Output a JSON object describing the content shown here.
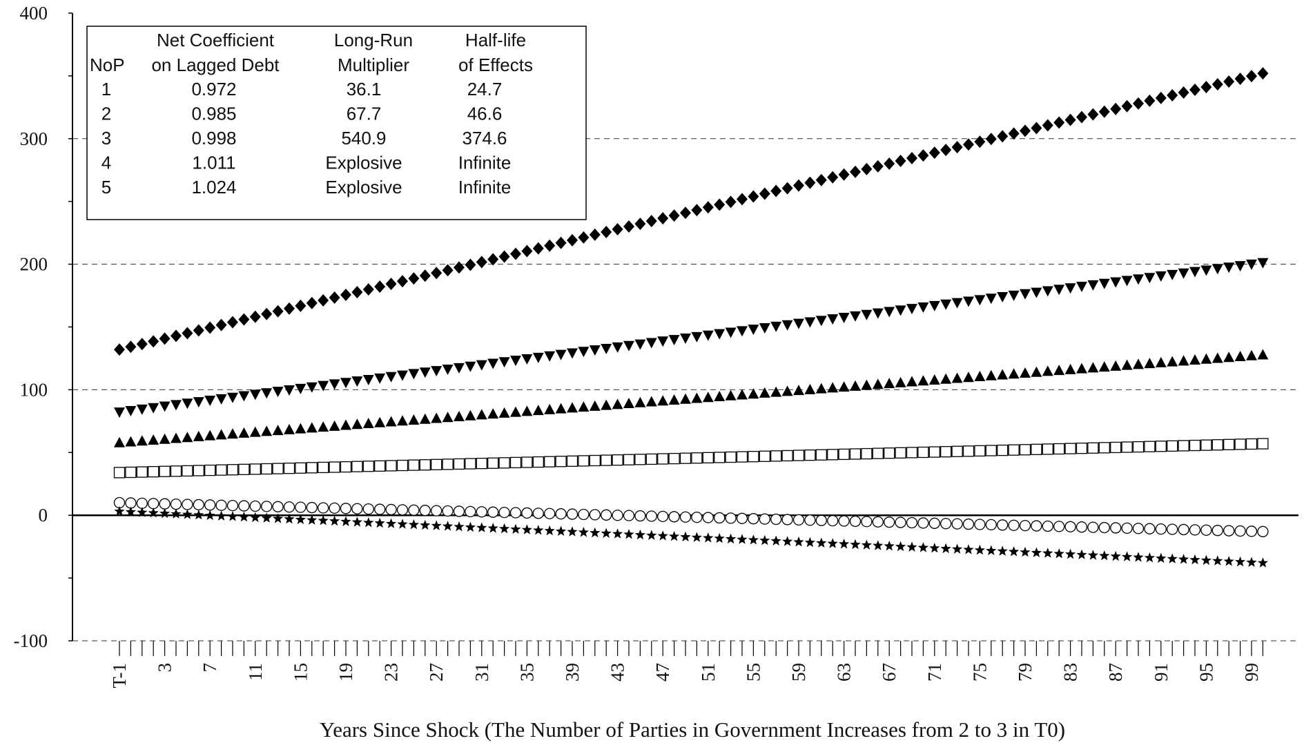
{
  "chart_data": {
    "type": "scatter",
    "title": "",
    "xlabel": "Years Since Shock (The Number of Parties in Government Increases from 2 to 3 in T0)",
    "ylabel": "",
    "ylim": [
      -100,
      400
    ],
    "yticks": [
      "-100",
      "0",
      "100",
      "200",
      "300",
      "400"
    ],
    "xticks": [
      "T-1",
      "3",
      "7",
      "11",
      "15",
      "19",
      "23",
      "27",
      "31",
      "35",
      "39",
      "43",
      "47",
      "51",
      "55",
      "59",
      "63",
      "67",
      "71",
      "75",
      "79",
      "83",
      "87",
      "91",
      "95",
      "99"
    ],
    "x_first_label": "T-1",
    "x_range": [
      -1,
      100
    ],
    "gridlines": [
      100,
      200,
      300
    ],
    "grid": "dashed horizontal",
    "legend": "none",
    "series": [
      {
        "marker": "diamond-filled",
        "start": 132,
        "end": 352
      },
      {
        "marker": "triangle-down-filled",
        "start": 82,
        "end": 201
      },
      {
        "marker": "triangle-up-filled",
        "start": 58,
        "end": 128
      },
      {
        "marker": "square-open",
        "start": 34,
        "end": 57
      },
      {
        "marker": "circle-open",
        "start": 10,
        "end": -13
      },
      {
        "marker": "star-filled",
        "start": 3,
        "end": -38
      }
    ],
    "table": {
      "header_line1": [
        "",
        "Net Coefficient",
        "Long-Run",
        "Half-life"
      ],
      "header_line2": [
        "NoP",
        "on Lagged Debt",
        "Multiplier",
        "of Effects"
      ],
      "rows": [
        [
          "1",
          "0.972",
          "36.1",
          "24.7"
        ],
        [
          "2",
          "0.985",
          "67.7",
          "46.6"
        ],
        [
          "3",
          "0.998",
          "540.9",
          "374.6"
        ],
        [
          "4",
          "1.011",
          "Explosive",
          "Infinite"
        ],
        [
          "5",
          "1.024",
          "Explosive",
          "Infinite"
        ]
      ]
    }
  }
}
